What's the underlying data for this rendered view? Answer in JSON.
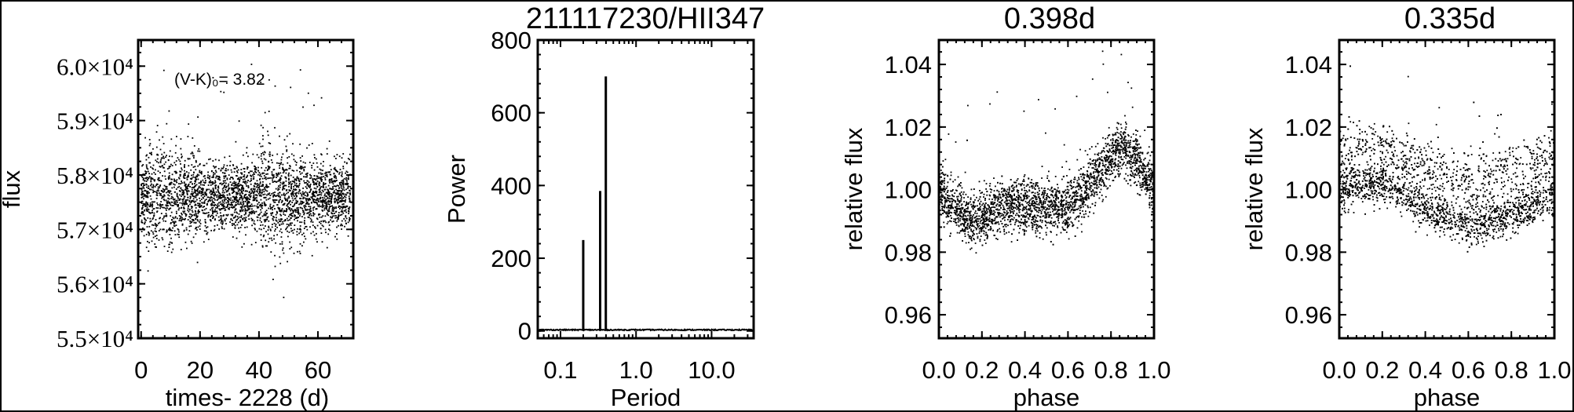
{
  "chart_data": [
    {
      "type": "scatter",
      "title": "",
      "xlabel": "times- 2228 (d)",
      "ylabel": "flux",
      "annotation": "(V-K)₀= 3.82",
      "xlim": [
        -1,
        72
      ],
      "ylim": [
        55000,
        60480
      ],
      "xticks": [
        0,
        20,
        40,
        60
      ],
      "xtick_labels": [
        "0",
        "20",
        "40",
        "60"
      ],
      "yticks": [
        55000,
        56000,
        57000,
        58000,
        59000,
        60000
      ],
      "ytick_labels": [
        "5.5×10⁴",
        "5.6×10⁴",
        "5.7×10⁴",
        "5.8×10⁴",
        "5.9×10⁴",
        "6.0×10⁴"
      ],
      "points_model": {
        "n_points": 3200,
        "x_range": [
          0,
          71
        ],
        "mean": 57600,
        "scatter_sd": 420,
        "outlier_max": 60100
      },
      "color": "#000000"
    },
    {
      "type": "line",
      "title": "211117230/HII347",
      "xlabel": "Period",
      "ylabel": "Power",
      "xscale": "log",
      "xlim": [
        0.05,
        36
      ],
      "ylim": [
        -20,
        800
      ],
      "xticks": [
        0.1,
        1.0,
        10.0
      ],
      "xtick_labels": [
        "0.1",
        "1.0",
        "10.0"
      ],
      "yticks": [
        0,
        200,
        400,
        600,
        800
      ],
      "ytick_labels": [
        "0",
        "200",
        "400",
        "600",
        "800"
      ],
      "peaks": [
        {
          "period": 0.2,
          "power": 250
        },
        {
          "period": 0.335,
          "power": 385
        },
        {
          "period": 0.398,
          "power": 700
        }
      ],
      "baseline_power": 3,
      "color": "#000000"
    },
    {
      "type": "scatter",
      "title": "0.398d",
      "xlabel": "phase",
      "ylabel": "relative flux",
      "xlim": [
        0,
        1
      ],
      "ylim": [
        0.9525,
        1.0478
      ],
      "xticks": [
        0,
        0.2,
        0.4,
        0.6,
        0.8,
        1.0
      ],
      "xtick_labels": [
        "0.0",
        "0.2",
        "0.4",
        "0.6",
        "0.8",
        "1.0"
      ],
      "yticks": [
        0.96,
        0.98,
        1.0,
        1.02,
        1.04
      ],
      "ytick_labels": [
        "0.96",
        "0.98",
        "1.00",
        "1.02",
        "1.04"
      ],
      "mean_curve": {
        "phase": [
          0,
          0.15,
          0.3,
          0.45,
          0.6,
          0.7,
          0.85,
          0.95,
          1.0
        ],
        "flux": [
          0.999,
          0.99,
          0.995,
          0.994,
          0.994,
          1.002,
          1.014,
          1.006,
          0.999
        ]
      },
      "points_model": {
        "n_points": 3200,
        "scatter_sd": 0.0042
      },
      "color": "#000000"
    },
    {
      "type": "scatter",
      "title": "0.335d",
      "xlabel": "phase",
      "ylabel": "relative flux",
      "xlim": [
        0,
        1
      ],
      "ylim": [
        0.9525,
        1.0478
      ],
      "xticks": [
        0,
        0.2,
        0.4,
        0.6,
        0.8,
        1.0
      ],
      "xtick_labels": [
        "0.0",
        "0.2",
        "0.4",
        "0.6",
        "0.8",
        "1.0"
      ],
      "yticks": [
        0.96,
        0.98,
        1.0,
        1.02,
        1.04
      ],
      "ytick_labels": [
        "0.96",
        "0.98",
        "1.00",
        "1.02",
        "1.04"
      ],
      "mean_curve": {
        "phase": [
          0,
          0.2,
          0.4,
          0.6,
          0.8,
          1.0
        ],
        "flux": [
          1.0,
          1.002,
          0.994,
          0.988,
          0.992,
          0.998
        ]
      },
      "upper_band_curve": {
        "phase": [
          0,
          0.2,
          0.4,
          0.6,
          0.8,
          1.0
        ],
        "flux": [
          1.01,
          1.013,
          1.006,
          1.002,
          1.006,
          1.01
        ]
      },
      "points_model": {
        "n_points": 3200,
        "scatter_sd": 0.003,
        "upper_band_fraction": 0.35,
        "upper_band_sd": 0.005
      },
      "color": "#000000"
    }
  ]
}
